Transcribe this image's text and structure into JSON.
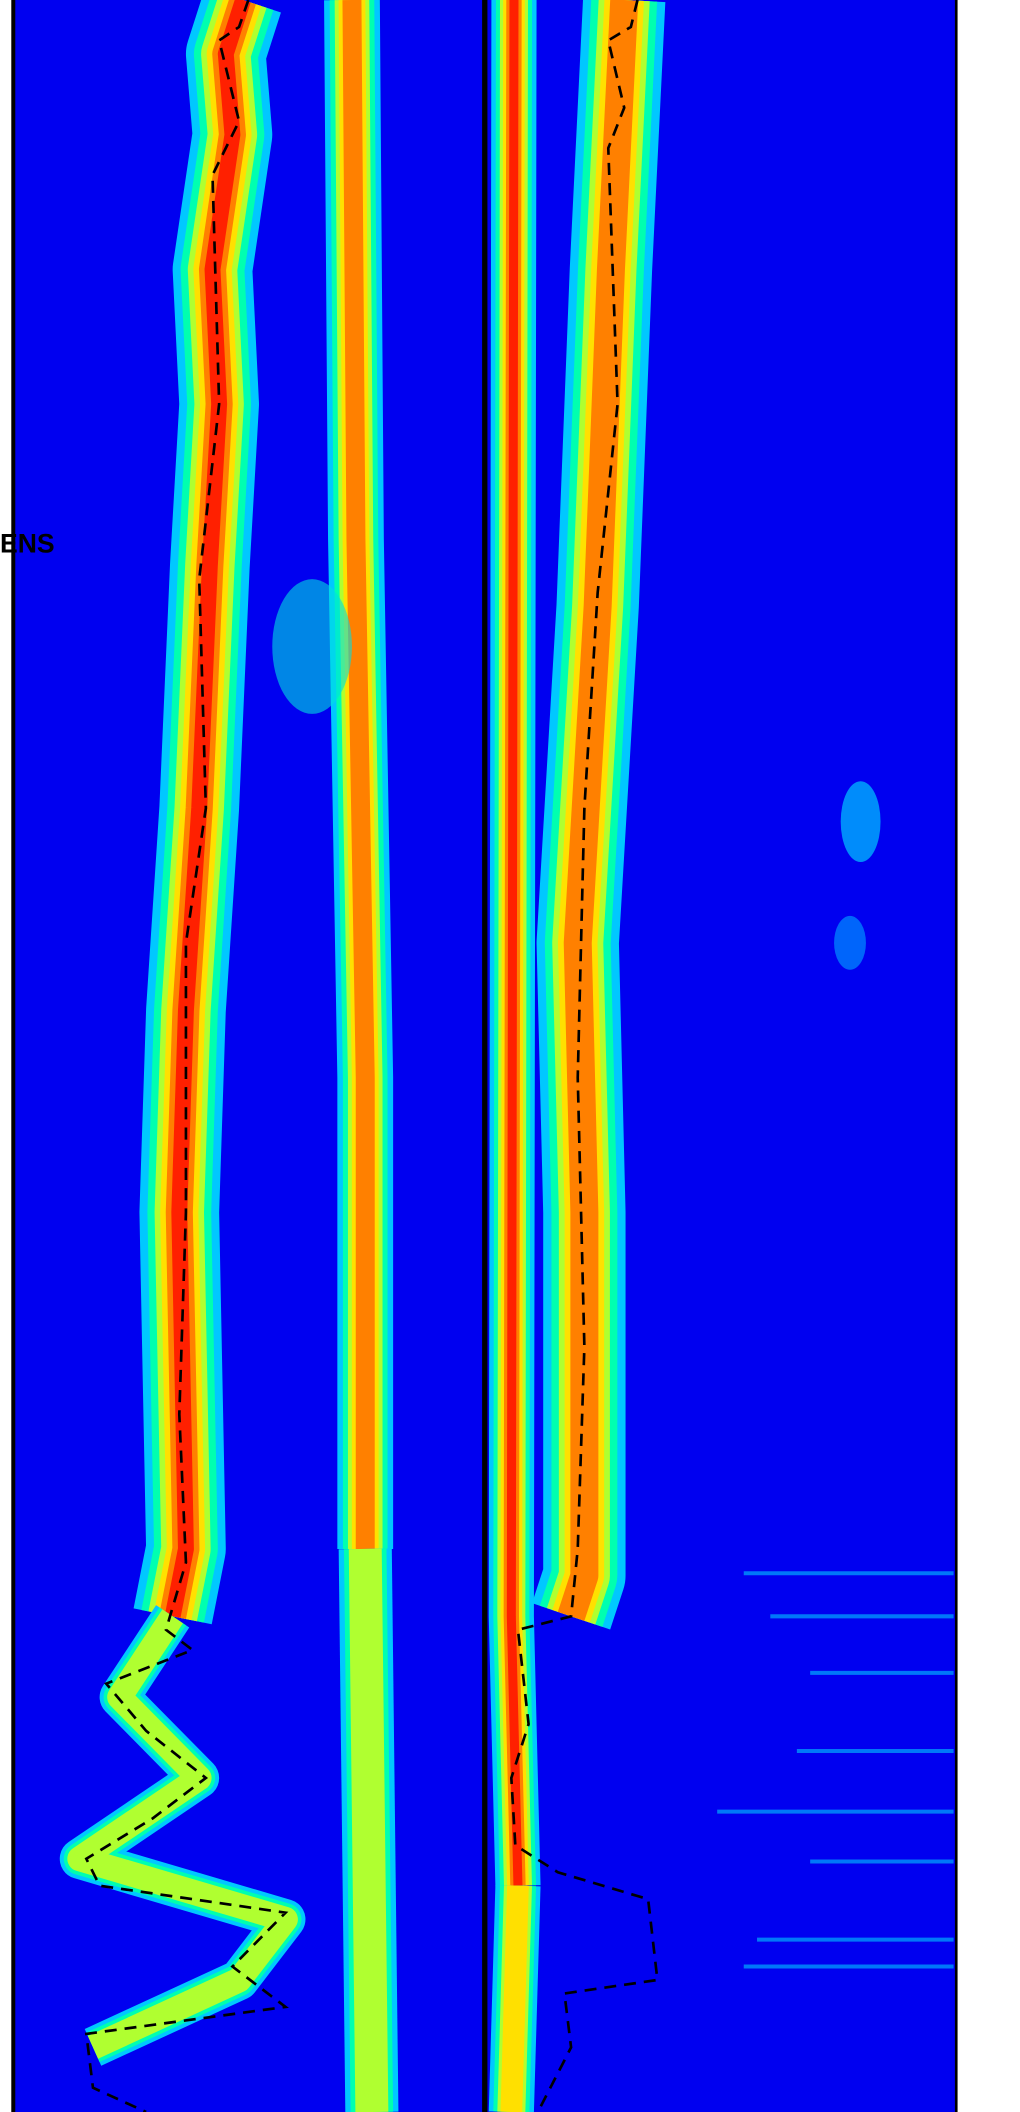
{
  "labels": {
    "track_label": "ENS"
  }
}
